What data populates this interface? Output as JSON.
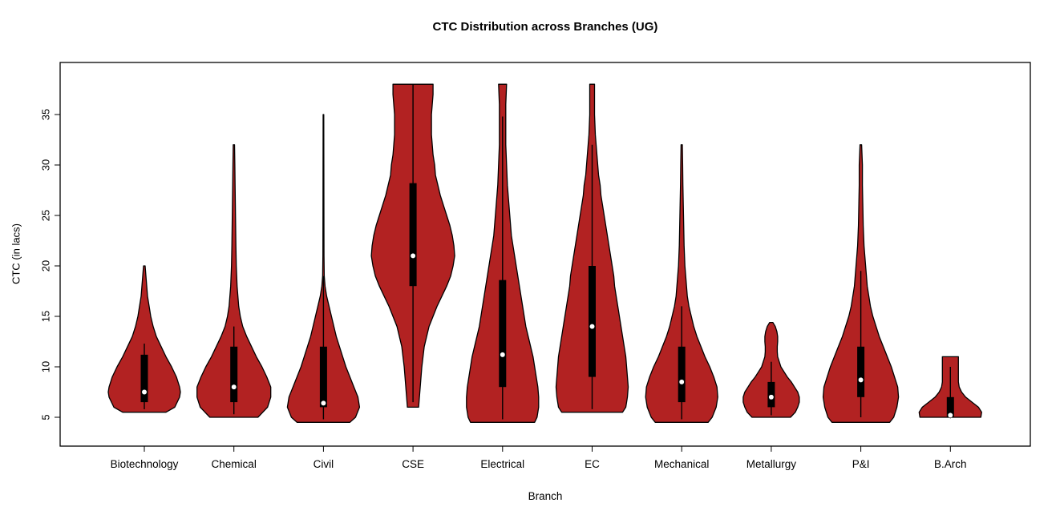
{
  "chart_data": {
    "type": "violin",
    "title": "CTC Distribution across Branches (UG)",
    "xlabel": "Branch",
    "ylabel": "CTC (in lacs)",
    "y_ticks": [
      5,
      10,
      15,
      20,
      25,
      30,
      35
    ],
    "ylim": [
      2.1,
      40.2
    ],
    "legend": "none",
    "grid": false,
    "colors": {
      "violin_fill": "#B22222",
      "outline": "#000000",
      "box": "#000000",
      "median_dot": "#FFFFFF",
      "background": "#FFFFFF"
    },
    "categories": [
      "Biotechnology",
      "Chemical",
      "Civil",
      "CSE",
      "Electrical",
      "EC",
      "Mechanical",
      "Metallurgy",
      "P&I",
      "B.Arch"
    ],
    "series": [
      {
        "name": "Biotechnology",
        "min": 5.5,
        "max": 20,
        "q1": 6.5,
        "median": 7.5,
        "q3": 11.2,
        "whisker_low": 5.8,
        "whisker_high": 12.3,
        "profile": [
          [
            5.5,
            27
          ],
          [
            6,
            38
          ],
          [
            7,
            44
          ],
          [
            7.5,
            45
          ],
          [
            8,
            44
          ],
          [
            9,
            40
          ],
          [
            10,
            34
          ],
          [
            11,
            27
          ],
          [
            12,
            21
          ],
          [
            13,
            15
          ],
          [
            14,
            11
          ],
          [
            15,
            8
          ],
          [
            16,
            6
          ],
          [
            17,
            4
          ],
          [
            18,
            3
          ],
          [
            19,
            2
          ],
          [
            20,
            1
          ]
        ]
      },
      {
        "name": "Chemical",
        "min": 5,
        "max": 32,
        "q1": 6.5,
        "median": 8,
        "q3": 12,
        "whisker_low": 5.3,
        "whisker_high": 14,
        "profile": [
          [
            5,
            30
          ],
          [
            6,
            42
          ],
          [
            7,
            46
          ],
          [
            8,
            46
          ],
          [
            9,
            41
          ],
          [
            10,
            35
          ],
          [
            11,
            28
          ],
          [
            12,
            22
          ],
          [
            13,
            16
          ],
          [
            14,
            11
          ],
          [
            15,
            8
          ],
          [
            16,
            6
          ],
          [
            18,
            4
          ],
          [
            20,
            3
          ],
          [
            22,
            2.5
          ],
          [
            25,
            2
          ],
          [
            28,
            1.5
          ],
          [
            30,
            1.2
          ],
          [
            32,
            0.8
          ]
        ]
      },
      {
        "name": "Civil",
        "min": 4.5,
        "max": 35,
        "q1": 6,
        "median": 6.4,
        "q3": 12,
        "whisker_low": 4.8,
        "whisker_high": 19,
        "profile": [
          [
            4.5,
            33
          ],
          [
            5,
            40
          ],
          [
            6,
            45
          ],
          [
            7,
            43
          ],
          [
            8,
            38
          ],
          [
            9,
            33
          ],
          [
            10,
            28
          ],
          [
            11,
            24
          ],
          [
            12,
            20
          ],
          [
            13,
            16
          ],
          [
            14,
            13
          ],
          [
            15,
            10
          ],
          [
            16,
            7
          ],
          [
            17,
            4
          ],
          [
            18,
            2
          ],
          [
            19,
            1
          ],
          [
            21,
            0.7
          ],
          [
            25,
            0.6
          ],
          [
            30,
            0.5
          ],
          [
            35,
            0.4
          ]
        ]
      },
      {
        "name": "CSE",
        "min": 6,
        "max": 38,
        "q1": 18,
        "median": 21,
        "q3": 28.2,
        "whisker_low": 6.5,
        "whisker_high": 38,
        "profile": [
          [
            6,
            7
          ],
          [
            7,
            8
          ],
          [
            8,
            9
          ],
          [
            10,
            11
          ],
          [
            12,
            14
          ],
          [
            14,
            20
          ],
          [
            15,
            25
          ],
          [
            16,
            30
          ],
          [
            17,
            36
          ],
          [
            18,
            42
          ],
          [
            19,
            47
          ],
          [
            20,
            50
          ],
          [
            21,
            52
          ],
          [
            22,
            51
          ],
          [
            23,
            49
          ],
          [
            24,
            46
          ],
          [
            25,
            42
          ],
          [
            26,
            38
          ],
          [
            27,
            34
          ],
          [
            28,
            31
          ],
          [
            29,
            28
          ],
          [
            30,
            27
          ],
          [
            31,
            25
          ],
          [
            32,
            24
          ],
          [
            33,
            23
          ],
          [
            34,
            23
          ],
          [
            35,
            23
          ],
          [
            36,
            24
          ],
          [
            37,
            25
          ],
          [
            38,
            25
          ]
        ]
      },
      {
        "name": "Electrical",
        "min": 4.5,
        "max": 38,
        "q1": 8,
        "median": 11.2,
        "q3": 18.6,
        "whisker_low": 4.8,
        "whisker_high": 34.8,
        "profile": [
          [
            4.5,
            40
          ],
          [
            5,
            43
          ],
          [
            6,
            45
          ],
          [
            7,
            45
          ],
          [
            8,
            44
          ],
          [
            9,
            42
          ],
          [
            10,
            40
          ],
          [
            11,
            38
          ],
          [
            12,
            35
          ],
          [
            13,
            32
          ],
          [
            14,
            29
          ],
          [
            15,
            27
          ],
          [
            16,
            25
          ],
          [
            17,
            23
          ],
          [
            18,
            21
          ],
          [
            19,
            19
          ],
          [
            20,
            17
          ],
          [
            21,
            15
          ],
          [
            22,
            13
          ],
          [
            23,
            11
          ],
          [
            24,
            10
          ],
          [
            25,
            9
          ],
          [
            26,
            8
          ],
          [
            27,
            7
          ],
          [
            28,
            6
          ],
          [
            29,
            5.5
          ],
          [
            30,
            5
          ],
          [
            31,
            4.5
          ],
          [
            32,
            4
          ],
          [
            33,
            4
          ],
          [
            34,
            4
          ],
          [
            35,
            4
          ],
          [
            36,
            4
          ],
          [
            37,
            4.5
          ],
          [
            38,
            5
          ]
        ]
      },
      {
        "name": "EC",
        "min": 5.5,
        "max": 38,
        "q1": 9,
        "median": 14,
        "q3": 20,
        "whisker_low": 5.8,
        "whisker_high": 32,
        "profile": [
          [
            5.5,
            38
          ],
          [
            6,
            42
          ],
          [
            7,
            44
          ],
          [
            8,
            45
          ],
          [
            9,
            44
          ],
          [
            10,
            43
          ],
          [
            11,
            42
          ],
          [
            12,
            40
          ],
          [
            13,
            38
          ],
          [
            14,
            36
          ],
          [
            15,
            34
          ],
          [
            16,
            32
          ],
          [
            17,
            30
          ],
          [
            18,
            28
          ],
          [
            19,
            27
          ],
          [
            20,
            25
          ],
          [
            21,
            23
          ],
          [
            22,
            21
          ],
          [
            23,
            19
          ],
          [
            24,
            17
          ],
          [
            25,
            15
          ],
          [
            26,
            13
          ],
          [
            27,
            11
          ],
          [
            28,
            10
          ],
          [
            29,
            8
          ],
          [
            30,
            7
          ],
          [
            31,
            6
          ],
          [
            32,
            5
          ],
          [
            33,
            4
          ],
          [
            34,
            3.5
          ],
          [
            35,
            3
          ],
          [
            36,
            3
          ],
          [
            37,
            3
          ],
          [
            38,
            3
          ]
        ]
      },
      {
        "name": "Mechanical",
        "min": 4.5,
        "max": 32,
        "q1": 6.5,
        "median": 8.5,
        "q3": 12,
        "whisker_low": 4.8,
        "whisker_high": 16,
        "profile": [
          [
            4.5,
            33
          ],
          [
            5,
            38
          ],
          [
            6,
            43
          ],
          [
            7,
            45
          ],
          [
            8,
            44
          ],
          [
            9,
            40
          ],
          [
            10,
            35
          ],
          [
            11,
            29
          ],
          [
            12,
            24
          ],
          [
            13,
            19
          ],
          [
            14,
            15
          ],
          [
            15,
            12
          ],
          [
            16,
            9
          ],
          [
            17,
            7
          ],
          [
            18,
            6
          ],
          [
            19,
            5
          ],
          [
            20,
            4
          ],
          [
            21,
            3.5
          ],
          [
            22,
            3
          ],
          [
            24,
            2.5
          ],
          [
            26,
            2
          ],
          [
            28,
            1.5
          ],
          [
            30,
            1.2
          ],
          [
            32,
            0.8
          ]
        ]
      },
      {
        "name": "Metallurgy",
        "min": 5,
        "max": 14.4,
        "q1": 6,
        "median": 7,
        "q3": 8.5,
        "whisker_low": 5.2,
        "whisker_high": 10.5,
        "profile": [
          [
            5,
            24
          ],
          [
            5.5,
            30
          ],
          [
            6,
            33
          ],
          [
            6.5,
            35
          ],
          [
            7,
            35
          ],
          [
            7.5,
            33
          ],
          [
            8,
            29
          ],
          [
            8.5,
            25
          ],
          [
            9,
            20
          ],
          [
            9.5,
            16
          ],
          [
            10,
            12
          ],
          [
            10.5,
            10
          ],
          [
            11,
            8
          ],
          [
            11.5,
            7.5
          ],
          [
            12,
            7.5
          ],
          [
            12.5,
            8
          ],
          [
            13,
            8
          ],
          [
            13.5,
            7
          ],
          [
            14,
            5
          ],
          [
            14.4,
            2
          ]
        ]
      },
      {
        "name": "P&I",
        "min": 4.5,
        "max": 32,
        "q1": 7,
        "median": 8.7,
        "q3": 12,
        "whisker_low": 5,
        "whisker_high": 19.5,
        "profile": [
          [
            4.5,
            36
          ],
          [
            5,
            41
          ],
          [
            6,
            45
          ],
          [
            7,
            47
          ],
          [
            8,
            46
          ],
          [
            9,
            42
          ],
          [
            10,
            38
          ],
          [
            11,
            33
          ],
          [
            12,
            28
          ],
          [
            13,
            23
          ],
          [
            14,
            19
          ],
          [
            15,
            15
          ],
          [
            16,
            12
          ],
          [
            17,
            10
          ],
          [
            18,
            8
          ],
          [
            19,
            7
          ],
          [
            20,
            6
          ],
          [
            21,
            5
          ],
          [
            22,
            4
          ],
          [
            24,
            3
          ],
          [
            26,
            2.5
          ],
          [
            28,
            2
          ],
          [
            30,
            2
          ],
          [
            31,
            1.5
          ],
          [
            32,
            1
          ]
        ]
      },
      {
        "name": "B.Arch",
        "min": 5,
        "max": 11,
        "q1": 5,
        "median": 5.2,
        "q3": 7,
        "whisker_low": 4.9,
        "whisker_high": 10,
        "profile": [
          [
            5,
            38
          ],
          [
            5.5,
            39
          ],
          [
            6,
            35
          ],
          [
            6.5,
            27
          ],
          [
            7,
            19
          ],
          [
            7.5,
            14
          ],
          [
            8,
            11
          ],
          [
            8.5,
            10
          ],
          [
            9,
            10
          ],
          [
            9.5,
            10
          ],
          [
            10,
            10
          ],
          [
            10.5,
            10
          ],
          [
            11,
            10
          ]
        ]
      }
    ]
  }
}
